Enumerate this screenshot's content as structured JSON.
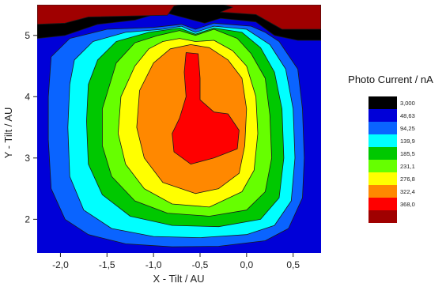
{
  "chart_data": {
    "type": "contour",
    "xlabel": "X - Tilt / AU",
    "ylabel": "Y - Tilt / AU",
    "xlim": [
      -2.25,
      0.8
    ],
    "ylim": [
      1.45,
      5.5
    ],
    "x_ticks": [
      {
        "value": -2.0,
        "label": "-2,0"
      },
      {
        "value": -1.5,
        "label": "-1,5"
      },
      {
        "value": -1.0,
        "label": "-1,0"
      },
      {
        "value": -0.5,
        "label": "-0,5"
      },
      {
        "value": 0.0,
        "label": "0,0"
      },
      {
        "value": 0.5,
        "label": "0,5"
      }
    ],
    "y_ticks": [
      {
        "value": 2,
        "label": "2"
      },
      {
        "value": 3,
        "label": "3"
      },
      {
        "value": 4,
        "label": "4"
      },
      {
        "value": 5,
        "label": "5"
      }
    ],
    "legend": {
      "title": "Photo Current / nA",
      "levels": [
        "3,000",
        "48,63",
        "94,25",
        "139,9",
        "185,5",
        "231,1",
        "276,8",
        "322,4",
        "368,0"
      ],
      "colors": [
        "#000000",
        "#0000d8",
        "#0a64ff",
        "#00ffff",
        "#00c800",
        "#66ff00",
        "#ffff00",
        "#ff8800",
        "#ff0000",
        "#a00000"
      ]
    },
    "regions": [
      {
        "level": "base",
        "color": "#0000d8",
        "points": [
          [
            -2.25,
            1.45
          ],
          [
            0.8,
            1.45
          ],
          [
            0.8,
            5.5
          ],
          [
            -2.25,
            5.5
          ]
        ]
      },
      {
        "level": "48,63",
        "color": "#0a64ff",
        "points": [
          [
            -2.1,
            4.65
          ],
          [
            -1.9,
            4.95
          ],
          [
            -1.5,
            5.1
          ],
          [
            -1.0,
            5.13
          ],
          [
            -0.7,
            5.18
          ],
          [
            -0.55,
            5.1
          ],
          [
            -0.35,
            5.2
          ],
          [
            0.05,
            5.15
          ],
          [
            0.2,
            5.05
          ],
          [
            0.35,
            4.9
          ],
          [
            0.55,
            4.45
          ],
          [
            0.6,
            3.8
          ],
          [
            0.62,
            3.0
          ],
          [
            0.6,
            2.35
          ],
          [
            0.45,
            1.85
          ],
          [
            0.2,
            1.65
          ],
          [
            -0.3,
            1.56
          ],
          [
            -0.8,
            1.55
          ],
          [
            -1.3,
            1.6
          ],
          [
            -1.7,
            1.75
          ],
          [
            -1.95,
            2.0
          ],
          [
            -2.1,
            2.5
          ],
          [
            -2.13,
            3.3
          ],
          [
            -2.13,
            4.0
          ]
        ]
      },
      {
        "level": "94,25",
        "color": "#00ffff",
        "points": [
          [
            -1.85,
            4.6
          ],
          [
            -1.65,
            4.9
          ],
          [
            -1.3,
            5.05
          ],
          [
            -0.9,
            5.1
          ],
          [
            -0.7,
            5.15
          ],
          [
            -0.55,
            5.05
          ],
          [
            -0.35,
            5.15
          ],
          [
            0.0,
            5.1
          ],
          [
            0.25,
            4.85
          ],
          [
            0.42,
            4.45
          ],
          [
            0.5,
            3.8
          ],
          [
            0.52,
            3.0
          ],
          [
            0.48,
            2.3
          ],
          [
            0.3,
            1.9
          ],
          [
            0.0,
            1.75
          ],
          [
            -0.5,
            1.7
          ],
          [
            -1.0,
            1.72
          ],
          [
            -1.45,
            1.85
          ],
          [
            -1.75,
            2.15
          ],
          [
            -1.9,
            2.7
          ],
          [
            -1.92,
            3.5
          ],
          [
            -1.9,
            4.2
          ]
        ]
      },
      {
        "level": "139,9",
        "color": "#00c800",
        "points": [
          [
            -1.6,
            4.6
          ],
          [
            -1.4,
            4.9
          ],
          [
            -1.05,
            5.05
          ],
          [
            -0.72,
            5.12
          ],
          [
            -0.55,
            5.02
          ],
          [
            -0.35,
            5.12
          ],
          [
            -0.05,
            5.05
          ],
          [
            0.15,
            4.8
          ],
          [
            0.3,
            4.4
          ],
          [
            0.38,
            3.8
          ],
          [
            0.4,
            3.0
          ],
          [
            0.35,
            2.35
          ],
          [
            0.15,
            2.0
          ],
          [
            -0.3,
            1.88
          ],
          [
            -0.8,
            1.9
          ],
          [
            -1.25,
            2.05
          ],
          [
            -1.55,
            2.4
          ],
          [
            -1.7,
            2.9
          ],
          [
            -1.72,
            3.6
          ],
          [
            -1.7,
            4.2
          ]
        ]
      },
      {
        "level": "185,5",
        "color": "#66ff00",
        "points": [
          [
            -1.4,
            4.55
          ],
          [
            -1.2,
            4.88
          ],
          [
            -0.95,
            5.0
          ],
          [
            -0.72,
            5.08
          ],
          [
            -0.55,
            5.0
          ],
          [
            -0.35,
            5.1
          ],
          [
            -0.1,
            4.95
          ],
          [
            0.05,
            4.7
          ],
          [
            0.2,
            4.3
          ],
          [
            0.25,
            3.7
          ],
          [
            0.27,
            3.0
          ],
          [
            0.2,
            2.45
          ],
          [
            0.0,
            2.15
          ],
          [
            -0.4,
            2.05
          ],
          [
            -0.85,
            2.1
          ],
          [
            -1.2,
            2.3
          ],
          [
            -1.45,
            2.7
          ],
          [
            -1.55,
            3.2
          ],
          [
            -1.55,
            3.8
          ]
        ]
      },
      {
        "level": "231,1",
        "color": "#ffff00",
        "points": [
          [
            -1.2,
            4.5
          ],
          [
            -1.05,
            4.78
          ],
          [
            -0.9,
            4.9
          ],
          [
            -0.72,
            4.95
          ],
          [
            -0.55,
            4.9
          ],
          [
            -0.35,
            4.92
          ],
          [
            -0.15,
            4.75
          ],
          [
            0.0,
            4.5
          ],
          [
            0.1,
            4.0
          ],
          [
            0.12,
            3.4
          ],
          [
            0.08,
            2.8
          ],
          [
            -0.05,
            2.45
          ],
          [
            -0.4,
            2.2
          ],
          [
            -0.8,
            2.25
          ],
          [
            -1.1,
            2.5
          ],
          [
            -1.3,
            2.9
          ],
          [
            -1.38,
            3.4
          ],
          [
            -1.35,
            4.0
          ]
        ]
      },
      {
        "level": "276,8",
        "color": "#ff8800",
        "points": [
          [
            -1.0,
            4.55
          ],
          [
            -0.82,
            4.78
          ],
          [
            -0.6,
            4.85
          ],
          [
            -0.4,
            4.8
          ],
          [
            -0.2,
            4.6
          ],
          [
            -0.05,
            4.3
          ],
          [
            0.0,
            3.8
          ],
          [
            -0.02,
            3.2
          ],
          [
            -0.08,
            2.75
          ],
          [
            -0.3,
            2.5
          ],
          [
            -0.55,
            2.42
          ],
          [
            -0.9,
            2.6
          ],
          [
            -1.1,
            3.0
          ],
          [
            -1.18,
            3.5
          ],
          [
            -1.15,
            4.1
          ]
        ]
      },
      {
        "level": "322,4",
        "color": "#ff0000",
        "points": [
          [
            -0.65,
            4.72
          ],
          [
            -0.52,
            4.7
          ],
          [
            -0.5,
            4.3
          ],
          [
            -0.5,
            3.95
          ],
          [
            -0.35,
            3.75
          ],
          [
            -0.2,
            3.72
          ],
          [
            -0.08,
            3.45
          ],
          [
            -0.1,
            3.15
          ],
          [
            -0.35,
            3.0
          ],
          [
            -0.6,
            2.9
          ],
          [
            -0.78,
            3.1
          ],
          [
            -0.8,
            3.4
          ],
          [
            -0.72,
            3.65
          ],
          [
            -0.65,
            4.0
          ],
          [
            -0.67,
            4.4
          ]
        ]
      },
      {
        "level": "3,000",
        "color": "#000000",
        "points": [
          [
            -2.25,
            4.95
          ],
          [
            -1.95,
            5.0
          ],
          [
            -1.6,
            5.18
          ],
          [
            -1.2,
            5.25
          ],
          [
            -0.9,
            5.38
          ],
          [
            -0.45,
            5.2
          ],
          [
            -0.28,
            5.28
          ],
          [
            0.1,
            5.22
          ],
          [
            0.3,
            5.0
          ],
          [
            0.55,
            4.92
          ],
          [
            0.8,
            4.92
          ],
          [
            0.8,
            5.5
          ],
          [
            -2.25,
            5.5
          ]
        ]
      },
      {
        "level": "368,0",
        "color": "#a00000",
        "points": [
          [
            -2.25,
            5.18
          ],
          [
            -1.95,
            5.2
          ],
          [
            -1.7,
            5.3
          ],
          [
            -0.85,
            5.33
          ],
          [
            -0.78,
            5.48
          ],
          [
            -0.7,
            5.5
          ],
          [
            -2.25,
            5.5
          ]
        ]
      },
      {
        "level": "368,0",
        "color": "#a00000",
        "points": [
          [
            -0.28,
            5.38
          ],
          [
            -0.15,
            5.46
          ],
          [
            -0.25,
            5.5
          ],
          [
            0.8,
            5.5
          ],
          [
            0.8,
            5.1
          ],
          [
            0.38,
            5.1
          ],
          [
            0.1,
            5.34
          ]
        ]
      }
    ]
  }
}
